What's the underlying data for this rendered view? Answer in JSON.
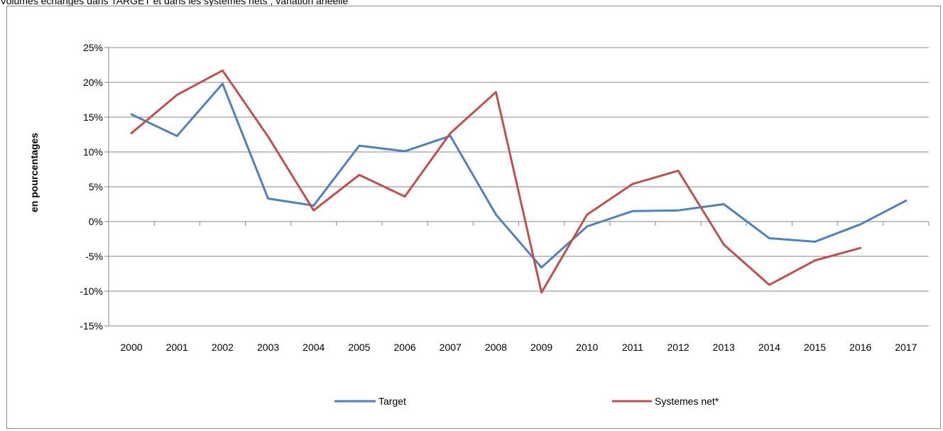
{
  "chart_data": {
    "type": "line",
    "title": "Volumes échangés dans TARGET et dans les systèmes nets ; variation anéelle",
    "xlabel": "",
    "ylabel": "en pourcentages",
    "ylim": [
      -15,
      25
    ],
    "yticks": [
      25,
      20,
      15,
      10,
      5,
      0,
      -5,
      -10,
      -15
    ],
    "ytick_labels": [
      "25%",
      "20%",
      "15%",
      "10%",
      "5%",
      "0%",
      "-5%",
      "-10%",
      "-15%"
    ],
    "grid": true,
    "legend_position": "bottom",
    "categories": [
      "2000",
      "2001",
      "2002",
      "2003",
      "2004",
      "2005",
      "2006",
      "2007",
      "2008",
      "2009",
      "2010",
      "2011",
      "2012",
      "2013",
      "2014",
      "2015",
      "2016",
      "2017"
    ],
    "series": [
      {
        "name": "Target",
        "color": "#4f81bd",
        "values": [
          15.4,
          12.3,
          19.8,
          3.3,
          2.3,
          10.9,
          10.1,
          12.3,
          1.0,
          -6.6,
          -0.7,
          1.5,
          1.6,
          2.5,
          -2.4,
          -2.9,
          -0.4,
          3.0
        ]
      },
      {
        "name": "Systemes net*",
        "color": "#c0504d",
        "values": [
          12.7,
          18.2,
          21.7,
          12.2,
          1.6,
          6.7,
          3.6,
          12.7,
          18.6,
          -10.2,
          1.0,
          5.4,
          7.3,
          -3.3,
          -9.1,
          -5.6,
          -3.8,
          null
        ]
      }
    ]
  }
}
